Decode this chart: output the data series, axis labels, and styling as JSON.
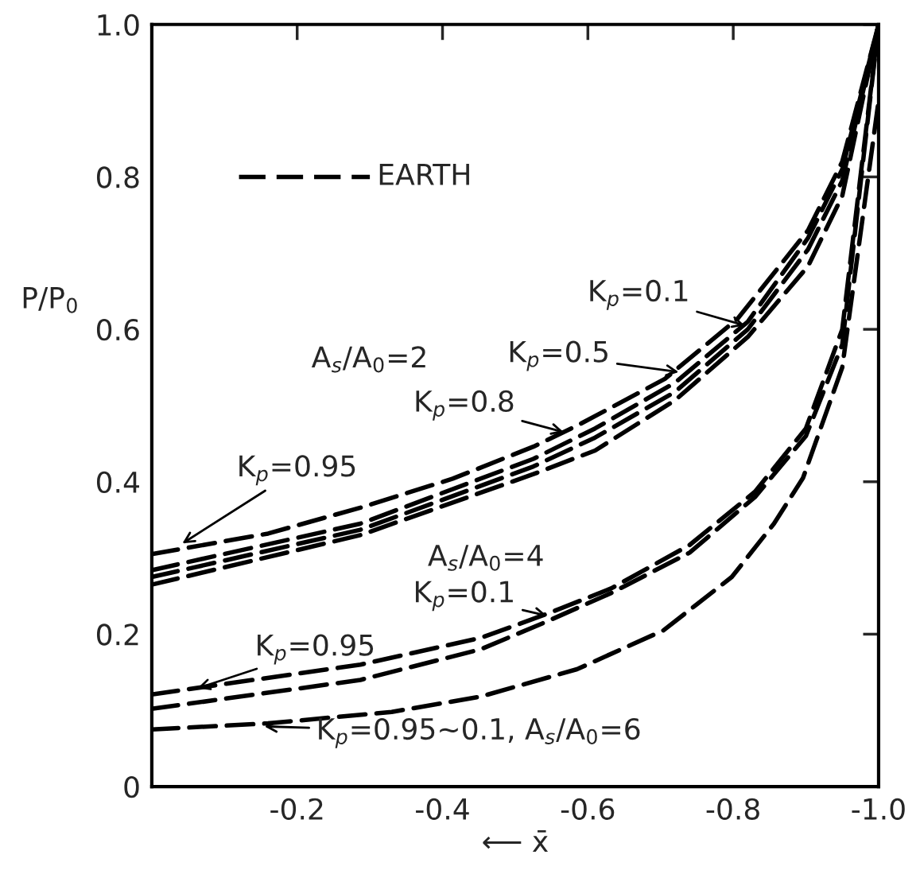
{
  "chart_data": {
    "type": "line",
    "xlabel": "⟵ x̄",
    "ylabel": "P/P$_{0}$",
    "xlim": [
      0,
      -1.0
    ],
    "ylim": [
      0,
      1.0
    ],
    "xticks": [
      -0.2,
      -0.4,
      -0.6,
      -0.8,
      {
        "value": -1.0,
        "label": "-1.0"
      }
    ],
    "yticks": [
      0,
      0.2,
      0.4,
      0.6,
      0.8,
      {
        "value": 1.0,
        "label": "1.0"
      }
    ],
    "grid": false,
    "legend": false,
    "line_style": "dashed",
    "marker": "none",
    "series": [
      {
        "color": "#000000",
        "x": [
          0,
          -0.16,
          -0.287,
          -0.414,
          -0.525,
          -0.586,
          -0.706,
          -0.806,
          -0.903,
          -0.95,
          -1.0
        ],
        "values": [
          0.305,
          0.332,
          0.366,
          0.404,
          0.446,
          0.474,
          0.535,
          0.614,
          0.73,
          0.82,
          1.0
        ]
      },
      {
        "color": "#000000",
        "x": [
          0,
          -0.287,
          -0.525,
          -0.61,
          -0.72,
          -0.82,
          -0.903,
          -0.95,
          -1.0
        ],
        "values": [
          0.284,
          0.345,
          0.43,
          0.47,
          0.53,
          0.61,
          0.72,
          0.81,
          1.0
        ]
      },
      {
        "color": "#000000",
        "x": [
          0,
          -0.287,
          -0.525,
          -0.61,
          -0.72,
          -0.82,
          -0.903,
          -0.95,
          -1.0
        ],
        "values": [
          0.275,
          0.337,
          0.42,
          0.458,
          0.518,
          0.6,
          0.705,
          0.795,
          1.0
        ]
      },
      {
        "color": "#000000",
        "x": [
          0,
          -0.287,
          -0.525,
          -0.61,
          -0.72,
          -0.82,
          -0.903,
          -0.95,
          -1.0
        ],
        "values": [
          0.265,
          0.33,
          0.41,
          0.441,
          0.507,
          0.59,
          0.683,
          0.775,
          1.0
        ]
      },
      {
        "color": "#000000",
        "x": [
          0,
          -0.287,
          -0.452,
          -0.542,
          -0.632,
          -0.74,
          -0.83,
          -0.9,
          -0.95,
          -1.0
        ],
        "values": [
          0.121,
          0.16,
          0.195,
          0.226,
          0.26,
          0.317,
          0.387,
          0.47,
          0.6,
          1.0
        ]
      },
      {
        "color": "#000000",
        "x": [
          0,
          -0.287,
          -0.452,
          -0.542,
          -0.632,
          -0.74,
          -0.83,
          -0.9,
          -0.95,
          -1.0
        ],
        "values": [
          0.102,
          0.14,
          0.18,
          0.216,
          0.254,
          0.307,
          0.38,
          0.46,
          0.58,
          1.0
        ]
      },
      {
        "color": "#000000",
        "x": [
          0,
          -0.16,
          -0.33,
          -0.452,
          -0.585,
          -0.704,
          -0.798,
          -0.856,
          -0.896,
          -0.95,
          -1.0
        ],
        "values": [
          0.075,
          0.083,
          0.098,
          0.118,
          0.154,
          0.205,
          0.275,
          0.345,
          0.405,
          0.55,
          0.9
        ]
      }
    ],
    "annotations": [
      "A$_{s}$/A$_{0}$=2",
      {
        "text": "K$_{p}$=0.1",
        "x": -0.816,
        "y": 0.605
      },
      {
        "text": "K$_{p}$=0.5",
        "x": -0.725,
        "y": 0.544
      },
      {
        "text": "K$_{p}$=0.8",
        "x": -0.567,
        "y": 0.465
      },
      {
        "text": "K$_{p}$=0.95",
        "x": -0.042,
        "y": 0.319
      },
      "A$_{s}$/A$_{0}$=4",
      {
        "text": "K$_{p}$=0.1",
        "x": -0.544,
        "y": 0.224
      },
      {
        "text": "K$_{p}$=0.95",
        "x": -0.063,
        "y": 0.129
      },
      {
        "text": "K$_{p}$=0.95~0.1, A$_{s}$/A$_{0}$=6",
        "x": -0.155,
        "y": 0.079
      },
      "EARTH"
    ]
  }
}
